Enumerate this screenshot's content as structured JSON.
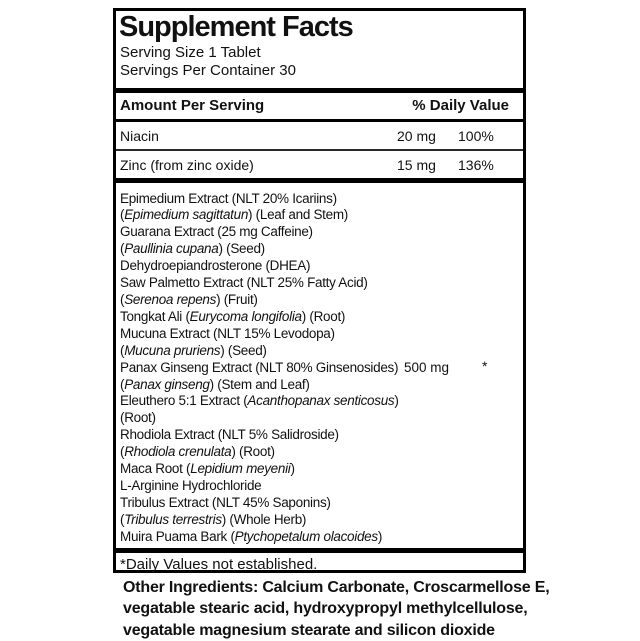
{
  "label": {
    "title": "Supplement Facts",
    "serving_size": "Serving Size 1 Tablet",
    "servings_per_container": "Servings Per Container 30",
    "columns": {
      "amount_header": "Amount Per Serving",
      "dv_header": "% Daily Value"
    },
    "nutrients": [
      {
        "name": "Niacin",
        "amount": "20 mg",
        "dv": "100%"
      },
      {
        "name": "Zinc (from zinc oxide)",
        "amount": "15 mg",
        "dv": "136%"
      }
    ],
    "blend": {
      "amount": "500 mg",
      "dv": "*",
      "lines": [
        [
          {
            "t": "Epimedium Extract (NLT 20% Icariins)"
          }
        ],
        [
          {
            "t": "("
          },
          {
            "t": "Epimedium sagittatun",
            "i": true
          },
          {
            "t": ") (Leaf and Stem)"
          }
        ],
        [
          {
            "t": "Guarana Extract (25 mg Caffeine)"
          }
        ],
        [
          {
            "t": "("
          },
          {
            "t": "Paullinia cupana",
            "i": true
          },
          {
            "t": ")  (Seed)"
          }
        ],
        [
          {
            "t": "Dehydroepiandrosterone (DHEA)"
          }
        ],
        [
          {
            "t": "Saw Palmetto Extract (NLT 25% Fatty Acid)"
          }
        ],
        [
          {
            "t": "("
          },
          {
            "t": "Serenoa repens",
            "i": true
          },
          {
            "t": ") (Fruit)"
          }
        ],
        [
          {
            "t": "Tongkat Ali ("
          },
          {
            "t": "Eurycoma longifolia",
            "i": true
          },
          {
            "t": ") (Root)"
          }
        ],
        [
          {
            "t": "Mucuna Extract (NLT 15% Levodopa)"
          }
        ],
        [
          {
            "t": "("
          },
          {
            "t": "Mucuna pruriens",
            "i": true
          },
          {
            "t": ") (Seed)"
          }
        ],
        [
          {
            "t": "Panax Ginseng Extract (NLT 80% Ginsenosides)"
          }
        ],
        [
          {
            "t": "("
          },
          {
            "t": "Panax ginseng",
            "i": true
          },
          {
            "t": ") (Stem and Leaf)"
          }
        ],
        [
          {
            "t": "Eleuthero 5:1 Extract ("
          },
          {
            "t": "Acanthopanax senticosus",
            "i": true
          },
          {
            "t": ")"
          }
        ],
        [
          {
            "t": "(Root)"
          }
        ],
        [
          {
            "t": "Rhodiola Extract (NLT 5% Salidroside)"
          }
        ],
        [
          {
            "t": "("
          },
          {
            "t": "Rhodiola crenulata",
            "i": true
          },
          {
            "t": ") (Root)"
          }
        ],
        [
          {
            "t": "Maca Root ("
          },
          {
            "t": "Lepidium meyenii",
            "i": true
          },
          {
            "t": ")"
          }
        ],
        [
          {
            "t": "L-Arginine Hydrochloride"
          }
        ],
        [
          {
            "t": "Tribulus Extract (NLT 45% Saponins)"
          }
        ],
        [
          {
            "t": "("
          },
          {
            "t": "Tribulus terrestris",
            "i": true
          },
          {
            "t": ") (Whole Herb)"
          }
        ],
        [
          {
            "t": "Muira Puama Bark ("
          },
          {
            "t": "Ptychopetalum olacoides",
            "i": true
          },
          {
            "t": ")"
          }
        ]
      ]
    },
    "footnote": "*Daily Values not established."
  },
  "other_ingredients": {
    "lines": [
      "Other Ingredients: Calcium Carbonate, Croscarmellose E,",
      "vegatable stearic acid, hydroxypropyl methylcellulose,",
      "vegatable magnesium stearate and silicon dioxide"
    ]
  },
  "colors": {
    "text": "#111111",
    "rule": "#000000",
    "background": "#ffffff"
  }
}
